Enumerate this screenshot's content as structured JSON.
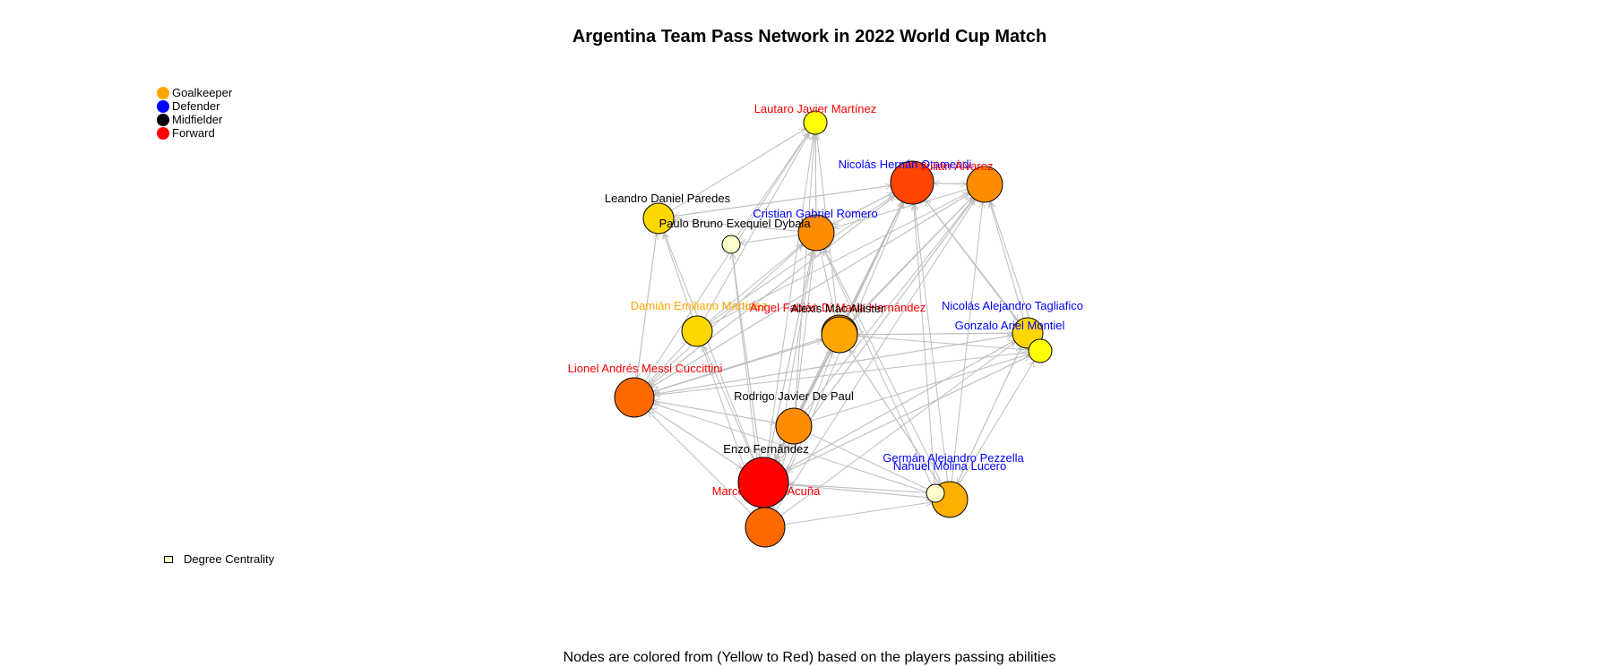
{
  "title": "Argentina Team Pass Network in 2022 World Cup Match",
  "caption": "Nodes are colored from (Yellow to Red) based on the players passing abilities",
  "legend": {
    "positions": [
      {
        "label": "Goalkeeper",
        "color": "#FFA500"
      },
      {
        "label": "Defender",
        "color": "#0000FF"
      },
      {
        "label": "Midfielder",
        "color": "#000000"
      },
      {
        "label": "Forward",
        "color": "#FF0000"
      }
    ],
    "size_label": "Degree Centrality"
  },
  "colors": {
    "edge": "#BEBEBE",
    "node_border": "#000000"
  },
  "network": {
    "nodes": [
      {
        "id": "lautaro",
        "label": "Lautaro Javier Martínez",
        "role": "Forward",
        "fill": "#FFFF00",
        "size": 1
      },
      {
        "id": "otamendi",
        "label": "Nicolás Hernán Otamendi",
        "role": "Defender",
        "fill": "#FF4500",
        "size": 5
      },
      {
        "id": "alvarez",
        "label": "Julián Álvarez",
        "role": "Forward",
        "fill": "#FF8C00",
        "size": 3
      },
      {
        "id": "paredes",
        "label": "Leandro Daniel Paredes",
        "role": "Midfielder",
        "fill": "#FFD700",
        "size": 2
      },
      {
        "id": "romero",
        "label": "Cristian Gabriel Romero",
        "role": "Defender",
        "fill": "#FF8C00",
        "size": 3
      },
      {
        "id": "dybala",
        "label": "Paulo Bruno Exequiel Dybala",
        "role": "Midfielder",
        "fill": "#FFFFCC",
        "size": 0
      },
      {
        "id": "martinez",
        "label": "Damián Emiliano Martínez",
        "role": "Goalkeeper",
        "fill": "#FFD700",
        "size": 2
      },
      {
        "id": "dimaria",
        "label": "Ángel Fabián Di María Hernández",
        "role": "Forward",
        "fill": "#FF8C00",
        "size": 3
      },
      {
        "id": "macallister",
        "label": "Alexis Mac Allister",
        "role": "Midfielder",
        "fill": "#FFA500",
        "size": 3
      },
      {
        "id": "tagliafico",
        "label": "Nicolás Alejandro Tagliafico",
        "role": "Defender",
        "fill": "#FFD700",
        "size": 2
      },
      {
        "id": "montiel",
        "label": "Gonzalo Ariel Montiel",
        "role": "Defender",
        "fill": "#FFFF00",
        "size": 1
      },
      {
        "id": "messi",
        "label": "Lionel Andrés Messi Cuccittini",
        "role": "Forward",
        "fill": "#FF6A00",
        "size": 4
      },
      {
        "id": "depaul",
        "label": "Rodrigo Javier De Paul",
        "role": "Midfielder",
        "fill": "#FF8C00",
        "size": 3
      },
      {
        "id": "enzo",
        "label": "Enzo Fernández",
        "role": "Midfielder",
        "fill": "#FF0000",
        "size": 6
      },
      {
        "id": "acuna",
        "label": "Marcos Javier Acuña",
        "role": "Forward",
        "fill": "#FF6A00",
        "size": 4
      },
      {
        "id": "pezzella",
        "label": "Germán Alejandro Pezzella",
        "role": "Defender",
        "fill": "#FFFFCC",
        "size": 0
      },
      {
        "id": "molina",
        "label": "Nahuel Molina Lucero",
        "role": "Defender",
        "fill": "#FFB000",
        "size": 3
      }
    ],
    "edges": [
      [
        "enzo",
        "messi"
      ],
      [
        "enzo",
        "otamendi"
      ],
      [
        "enzo",
        "alvarez"
      ],
      [
        "enzo",
        "romero"
      ],
      [
        "enzo",
        "macallister"
      ],
      [
        "enzo",
        "depaul"
      ],
      [
        "enzo",
        "molina"
      ],
      [
        "enzo",
        "lautaro"
      ],
      [
        "enzo",
        "tagliafico"
      ],
      [
        "enzo",
        "paredes"
      ],
      [
        "enzo",
        "martinez"
      ],
      [
        "enzo",
        "dimaria"
      ],
      [
        "enzo",
        "dybala"
      ],
      [
        "enzo",
        "montiel"
      ],
      [
        "enzo",
        "acuna"
      ],
      [
        "messi",
        "otamendi"
      ],
      [
        "messi",
        "macallister"
      ],
      [
        "messi",
        "depaul"
      ],
      [
        "messi",
        "alvarez"
      ],
      [
        "messi",
        "romero"
      ],
      [
        "messi",
        "lautaro"
      ],
      [
        "messi",
        "tagliafico"
      ],
      [
        "messi",
        "paredes"
      ],
      [
        "depaul",
        "otamendi"
      ],
      [
        "depaul",
        "alvarez"
      ],
      [
        "depaul",
        "macallister"
      ],
      [
        "depaul",
        "romero"
      ],
      [
        "depaul",
        "molina"
      ],
      [
        "depaul",
        "messi"
      ],
      [
        "depaul",
        "montiel"
      ],
      [
        "depaul",
        "lautaro"
      ],
      [
        "macallister",
        "otamendi"
      ],
      [
        "macallister",
        "alvarez"
      ],
      [
        "macallister",
        "romero"
      ],
      [
        "macallister",
        "tagliafico"
      ],
      [
        "macallister",
        "montiel"
      ],
      [
        "macallister",
        "messi"
      ],
      [
        "macallister",
        "molina"
      ],
      [
        "macallister",
        "lautaro"
      ],
      [
        "acuna",
        "macallister"
      ],
      [
        "acuna",
        "otamendi"
      ],
      [
        "acuna",
        "alvarez"
      ],
      [
        "acuna",
        "messi"
      ],
      [
        "acuna",
        "depaul"
      ],
      [
        "acuna",
        "romero"
      ],
      [
        "acuna",
        "molina"
      ],
      [
        "acuna",
        "tagliafico"
      ],
      [
        "acuna",
        "dybala"
      ],
      [
        "acuna",
        "martinez"
      ],
      [
        "molina",
        "otamendi"
      ],
      [
        "molina",
        "alvarez"
      ],
      [
        "molina",
        "macallister"
      ],
      [
        "molina",
        "enzo"
      ],
      [
        "molina",
        "messi"
      ],
      [
        "molina",
        "montiel"
      ],
      [
        "molina",
        "tagliafico"
      ],
      [
        "molina",
        "romero"
      ],
      [
        "pezzella",
        "otamendi"
      ],
      [
        "pezzella",
        "romero"
      ],
      [
        "pezzella",
        "enzo"
      ],
      [
        "pezzella",
        "molina"
      ],
      [
        "martinez",
        "otamendi"
      ],
      [
        "martinez",
        "romero"
      ],
      [
        "martinez",
        "lautaro"
      ],
      [
        "martinez",
        "paredes"
      ],
      [
        "martinez",
        "messi"
      ],
      [
        "martinez",
        "alvarez"
      ],
      [
        "otamendi",
        "romero"
      ],
      [
        "otamendi",
        "paredes"
      ],
      [
        "otamendi",
        "alvarez"
      ],
      [
        "otamendi",
        "messi"
      ],
      [
        "otamendi",
        "tagliafico"
      ],
      [
        "romero",
        "paredes"
      ],
      [
        "romero",
        "dybala"
      ],
      [
        "romero",
        "otamendi"
      ],
      [
        "romero",
        "lautaro"
      ],
      [
        "tagliafico",
        "otamendi"
      ],
      [
        "tagliafico",
        "alvarez"
      ],
      [
        "tagliafico",
        "macallister"
      ],
      [
        "tagliafico",
        "messi"
      ],
      [
        "tagliafico",
        "molina"
      ],
      [
        "montiel",
        "alvarez"
      ],
      [
        "montiel",
        "otamendi"
      ],
      [
        "montiel",
        "messi"
      ],
      [
        "montiel",
        "enzo"
      ],
      [
        "alvarez",
        "otamendi"
      ],
      [
        "alvarez",
        "romero"
      ],
      [
        "alvarez",
        "messi"
      ],
      [
        "paredes",
        "messi"
      ],
      [
        "paredes",
        "lautaro"
      ],
      [
        "paredes",
        "otamendi"
      ],
      [
        "dybala",
        "enzo"
      ],
      [
        "dybala",
        "lautaro"
      ],
      [
        "lautaro",
        "romero"
      ],
      [
        "dimaria",
        "otamendi"
      ],
      [
        "dimaria",
        "alvarez"
      ],
      [
        "dimaria",
        "messi"
      ],
      [
        "dimaria",
        "enzo"
      ],
      [
        "dimaria",
        "macallister"
      ],
      [
        "messi",
        "enzo"
      ],
      [
        "otamendi",
        "enzo"
      ],
      [
        "alvarez",
        "enzo"
      ],
      [
        "romero",
        "enzo"
      ],
      [
        "macallister",
        "enzo"
      ],
      [
        "depaul",
        "enzo"
      ],
      [
        "tagliafico",
        "enzo"
      ]
    ]
  }
}
